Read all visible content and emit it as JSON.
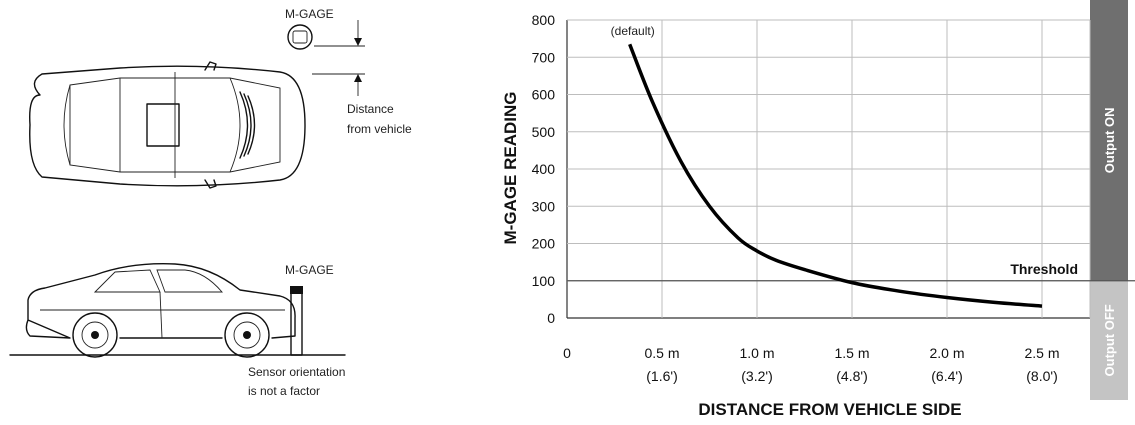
{
  "illustration": {
    "top_view_sensor_label": "M-GAGE",
    "distance_label_line1": "Distance",
    "distance_label_line2": "from vehicle",
    "side_view_sensor_label": "M-GAGE",
    "orientation_note_line1": "Sensor orientation",
    "orientation_note_line2": "is not a factor"
  },
  "chart_data": {
    "type": "line",
    "ylabel": "M-GAGE READING",
    "xlabel": "DISTANCE FROM VEHICLE SIDE",
    "x_unit": "m",
    "xlim": [
      0,
      2.55
    ],
    "ylim": [
      0,
      800
    ],
    "y_ticks": [
      0,
      100,
      200,
      300,
      400,
      500,
      600,
      700,
      800
    ],
    "x_ticks": [
      {
        "value": 0,
        "label": "0",
        "sublabel": ""
      },
      {
        "value": 0.5,
        "label": "0.5 m",
        "sublabel": "(1.6')"
      },
      {
        "value": 1.0,
        "label": "1.0 m",
        "sublabel": "(3.2')"
      },
      {
        "value": 1.5,
        "label": "1.5 m",
        "sublabel": "(4.8')"
      },
      {
        "value": 2.0,
        "label": "2.0 m",
        "sublabel": "(6.4')"
      },
      {
        "value": 2.5,
        "label": "2.5 m",
        "sublabel": "(8.0')"
      }
    ],
    "grid": true,
    "series": [
      {
        "x": [
          0.33,
          0.45,
          0.6,
          0.75,
          0.9,
          1.0,
          1.1,
          1.25,
          1.5,
          1.75,
          2.0,
          2.25,
          2.5
        ],
        "y": [
          735,
          580,
          420,
          300,
          215,
          180,
          155,
          130,
          95,
          72,
          55,
          42,
          32
        ]
      }
    ],
    "annotations": [
      {
        "text": "(default)",
        "x": 0.33,
        "y": 760
      }
    ],
    "threshold": {
      "value": 100,
      "label": "Threshold"
    },
    "bands": [
      {
        "label": "Output ON",
        "from": 100,
        "to": 800,
        "color": "#6f6f6f"
      },
      {
        "label": "Output OFF",
        "from": 0,
        "to": 100,
        "color": "#c4c4c4"
      }
    ],
    "colors": {
      "curve": "#000000",
      "grid": "#bdbdbd",
      "axis": "#333333"
    }
  }
}
